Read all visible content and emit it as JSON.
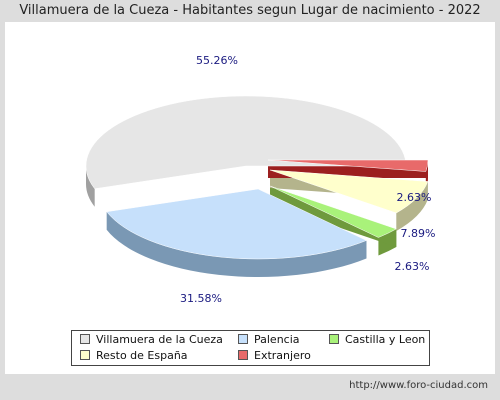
{
  "title": "Villamuera de la Cueza - Habitantes segun Lugar de nacimiento - 2022",
  "footer": "http://www.foro-ciudad.com",
  "chart_data": {
    "type": "pie",
    "title": "Villamuera de la Cueza - Habitantes segun Lugar de nacimiento - 2022",
    "categories": [
      "Villamuera de la Cueza",
      "Palencia",
      "Castilla y Leon",
      "Resto de España",
      "Extranjero"
    ],
    "values": [
      55.26,
      31.58,
      2.63,
      7.89,
      2.63
    ],
    "labels": [
      "55.26%",
      "31.58%",
      "2.63%",
      "7.89%",
      "2.63%"
    ],
    "colors": [
      "#e6e6e6",
      "#c6e0fb",
      "#a9f27a",
      "#ffffcc",
      "#e86a6a"
    ],
    "side_colors": [
      "#a0a0a0",
      "#7a98b4",
      "#6f9a3d",
      "#b4b48c",
      "#9c1f1f"
    ],
    "legend_placement": "bottom",
    "style": "3d-exploded"
  }
}
